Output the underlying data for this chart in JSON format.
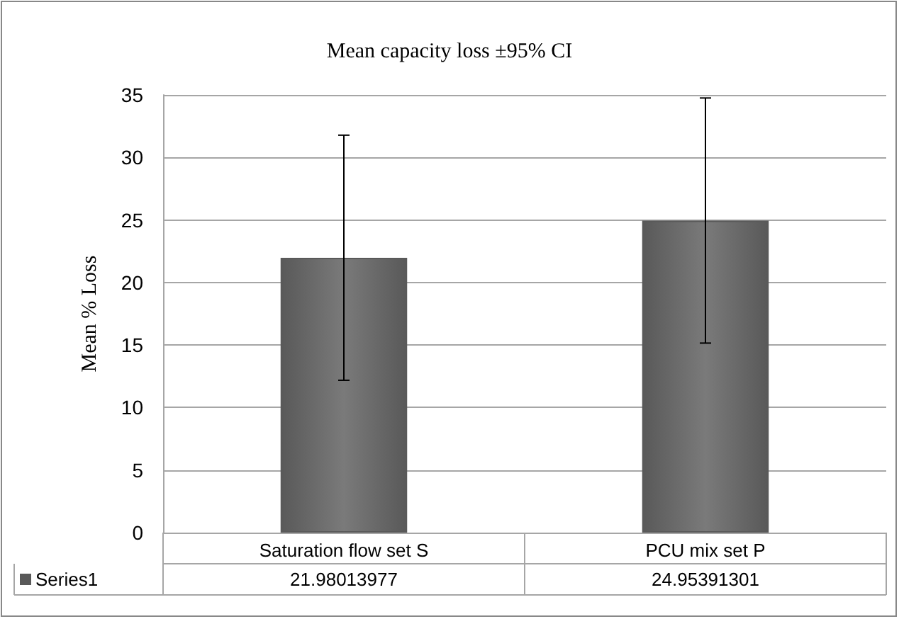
{
  "chart_data": {
    "type": "bar",
    "title": "Mean capacity loss ±95% CI",
    "ylabel": "Mean % Loss",
    "categories": [
      "Saturation flow set S",
      "PCU mix set P"
    ],
    "series": [
      {
        "name": "Series1",
        "color": "#595959",
        "values": [
          21.98013977,
          24.95391301
        ],
        "errors": [
          9.8,
          9.8
        ]
      }
    ],
    "ylim": [
      0,
      35
    ],
    "yticks": [
      0,
      5,
      10,
      15,
      20,
      25,
      30,
      35
    ],
    "grid": "y",
    "legend": "bottom left",
    "data_labels": true
  }
}
